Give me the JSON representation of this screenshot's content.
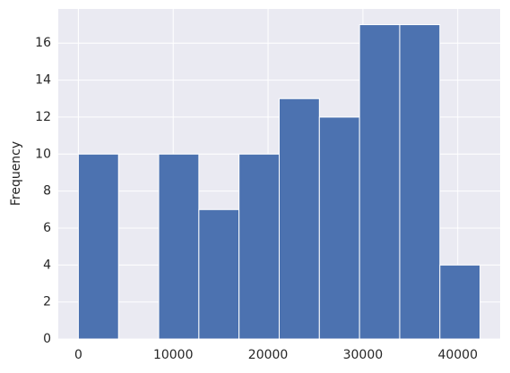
{
  "chart_data": {
    "type": "histogram",
    "y_label": "Frequency",
    "bins": [
      0,
      4235,
      8470,
      12705,
      16940,
      21175,
      25410,
      29645,
      33880,
      38115,
      42350
    ],
    "values": [
      10,
      0,
      10,
      7,
      10,
      13,
      12,
      17,
      17,
      4
    ],
    "color": "#4c72b0",
    "xlim": [
      -2118,
      44468
    ],
    "xticks": [
      0,
      10000,
      20000,
      30000,
      40000
    ],
    "ylim": [
      0,
      17.85
    ],
    "yticks": [
      0,
      2,
      4,
      6,
      8,
      10,
      12,
      14,
      16
    ],
    "grid": true
  }
}
